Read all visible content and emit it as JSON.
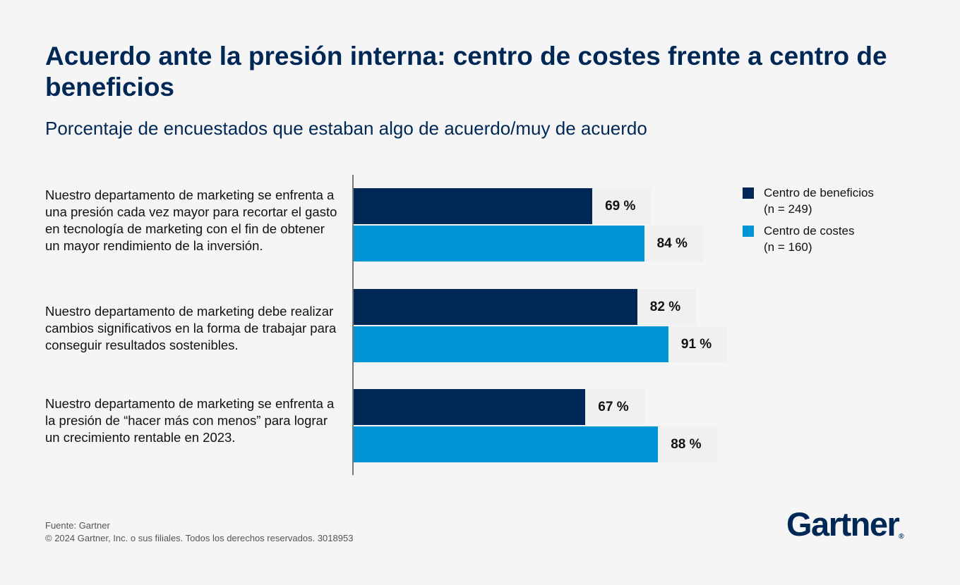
{
  "title": "Acuerdo ante la presión interna: centro de costes frente a centro de beneficios",
  "subtitle": "Porcentaje de encuestados que estaban algo de acuerdo/muy de acuerdo",
  "colors": {
    "dark_navy": "#002856",
    "blue": "#0096d6",
    "background": "#f5f5f5"
  },
  "chart_data": {
    "type": "bar",
    "orientation": "horizontal",
    "title": "Acuerdo ante la presión interna: centro de costes frente a centro de beneficios",
    "subtitle": "Porcentaje de encuestados que estaban algo de acuerdo/muy de acuerdo",
    "categories": [
      "Nuestro departamento de marketing se enfrenta a una presión cada vez mayor para recortar el gasto en tecnología de marketing con el fin de obtener un mayor rendimiento de la inversión.",
      "Nuestro departamento de marketing debe realizar cambios significativos en la forma de trabajar para conseguir resultados sostenibles.",
      "Nuestro departamento de marketing se enfrenta a la presión de “hacer más con menos” para lograr un crecimiento rentable en 2023."
    ],
    "series": [
      {
        "name": "Centro de beneficios (n = 249)",
        "values": [
          69,
          82,
          67
        ],
        "labels": [
          "69 %",
          "82 %",
          "67 %"
        ],
        "color": "#002856"
      },
      {
        "name": "Centro de costes (n = 160)",
        "values": [
          84,
          91,
          88
        ],
        "labels": [
          "84 %",
          "91 %",
          "88 %"
        ],
        "color": "#0096d6"
      }
    ],
    "xlim": [
      0,
      100
    ],
    "grid": false,
    "legend_position": "top-right"
  },
  "legend": [
    {
      "line1": "Centro de beneficios",
      "line2": "(n = 249)"
    },
    {
      "line1": "Centro de costes",
      "line2": "(n = 160)"
    }
  ],
  "footer": {
    "source": "Fuente: Gartner",
    "copyright": "© 2024 Gartner, Inc. o sus filiales. Todos los derechos reservados. 3018953"
  },
  "logo": {
    "text": "Gartner",
    "mark": "®"
  }
}
